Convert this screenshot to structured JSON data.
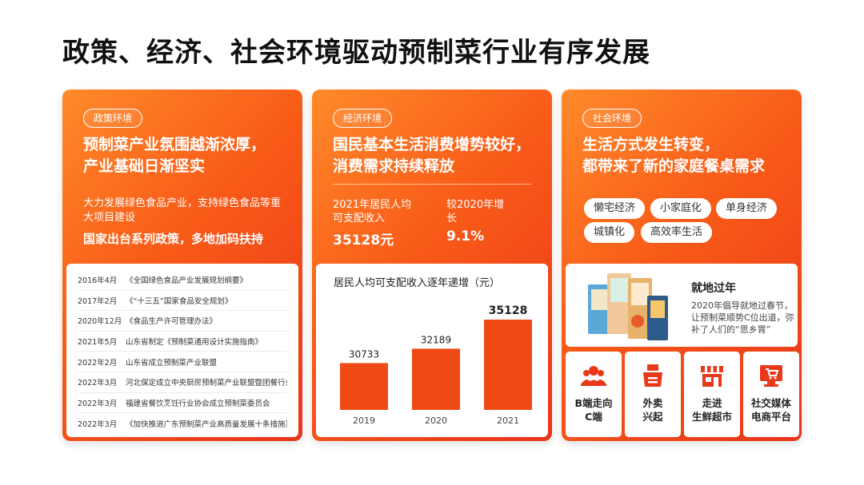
{
  "title": "政策、经济、社会环境驱动预制菜行业有序发展",
  "policy": {
    "tag": "政策环境",
    "headline_line1": "预制菜产业氛围越渐浓厚，",
    "headline_line2": "产业基础日渐坚实",
    "desc": "大力发展绿色食品产业，支持绿色食品等重大项目建设",
    "emphasis": "国家出台系列政策，多地加码扶持",
    "events": [
      {
        "date": "2016年4月",
        "text": "《全国绿色食品产业发展规划纲要》"
      },
      {
        "date": "2017年2月",
        "text": "《“十三五”国家食品安全规划》"
      },
      {
        "date": "2020年12月",
        "text": "《食品生产许可管理办法》"
      },
      {
        "date": "2021年5月",
        "text": "山东省制定《预制菜通用设计实施指南》"
      },
      {
        "date": "2022年2月",
        "text": "山东省成立预制菜产业联盟"
      },
      {
        "date": "2022年3月",
        "text": "河北保定成立中央厨房预制菜产业联盟暨团餐行业协会"
      },
      {
        "date": "2022年3月",
        "text": "福建省餐饮烹饪行业协会成立预制菜委员会"
      },
      {
        "date": "2022年3月",
        "text": "《加快推进广东预制菜产业高质量发展十条措施》"
      }
    ]
  },
  "economy": {
    "tag": "经济环境",
    "headline_line1": "国民基本生活消费增势较好，",
    "headline_line2": "消费需求持续释放",
    "stat1_label": "2021年居民人均可支配收入",
    "stat1_value": "35128元",
    "stat2_label": "较2020年增长",
    "stat2_value": "9.1%"
  },
  "chart_data": {
    "type": "bar",
    "title": "居民人均可支配收入逐年递增（元）",
    "categories": [
      "2019",
      "2020",
      "2021"
    ],
    "values": [
      30733,
      32189,
      35128
    ],
    "bar_color": "#f04a17",
    "highlight_last": true
  },
  "society": {
    "tag": "社会环境",
    "headline_line1": "生活方式发生转变，",
    "headline_line2": "都带来了新的家庭餐桌需求",
    "keywords": [
      "懒宅经济",
      "小家庭化",
      "单身经济",
      "城镇化",
      "高效率生活"
    ],
    "feature_title": "就地过年",
    "feature_desc": "2020年倡导就地过春节，让预制菜顺势C位出道，弥补了人们的“思乡胃”",
    "tiles": [
      {
        "line1": "B端走向",
        "line2": "C端",
        "icon": "people-icon"
      },
      {
        "line1": "外卖",
        "line2": "兴起",
        "icon": "takeout-icon"
      },
      {
        "line1": "走进",
        "line2": "生鲜超市",
        "icon": "store-icon"
      },
      {
        "line1": "社交媒体",
        "line2": "电商平台",
        "icon": "media-cart-icon"
      }
    ],
    "accent": "#e8391a"
  }
}
